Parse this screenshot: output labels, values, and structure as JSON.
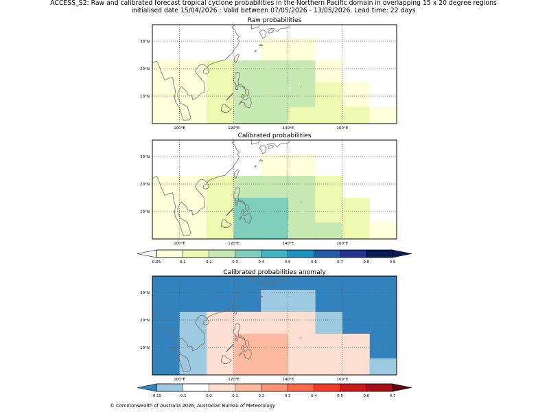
{
  "title_line1": "ACCESS_S2: Raw and calibrated forecast tropical cyclone probabilities in the Northern Pacific domain in overlapping 15 x 20 degree regions",
  "title_line2": "initialised date 15/04/2026 :  Valid between 07/05/2026 - 13/05/2026. Lead time: 22 days",
  "copyright": "© Commonwealth of Australia 2026, Australian Bureau of Meteorology",
  "colors": {
    "prob": [
      "#ffffd9",
      "#edf8b1",
      "#c7e9b4",
      "#7fcdbb",
      "#41b6c4",
      "#1d91c0",
      "#225ea8",
      "#253494",
      "#081d58"
    ],
    "prob_under": "#ffffff",
    "prob_over": "#081d58",
    "anom": [
      "#3182bd",
      "#9ecae1",
      "#ffffff",
      "#fee0d2",
      "#fcbba1",
      "#fc9272",
      "#fb6a4a",
      "#ef3b2c",
      "#cb181d",
      "#a50f15"
    ],
    "anom_under": "#3182bd",
    "anom_over": "#67000d",
    "coast": "#707070"
  },
  "chart_data": [
    {
      "type": "heatmap",
      "title": "Raw probabilities",
      "xticks": [
        "100°E",
        "120°E",
        "140°E",
        "160°E"
      ],
      "yticks": [
        "10°N",
        "20°N",
        "30°N"
      ],
      "xlim": [
        90,
        180
      ],
      "ylim": [
        0,
        36
      ],
      "cells": [
        {
          "lon": [
            90,
            110
          ],
          "lat": [
            0,
            23
          ],
          "value": 0.07
        },
        {
          "lon": [
            110,
            120
          ],
          "lat": [
            0,
            23
          ],
          "value": 0.13
        },
        {
          "lon": [
            120,
            130
          ],
          "lat": [
            15,
            23
          ],
          "value": 0.25
        },
        {
          "lon": [
            130,
            150
          ],
          "lat": [
            23,
            31
          ],
          "value": 0.07
        },
        {
          "lon": [
            130,
            140
          ],
          "lat": [
            15,
            23
          ],
          "value": 0.25
        },
        {
          "lon": [
            130,
            140
          ],
          "lat": [
            0,
            15
          ],
          "value": 0.25
        },
        {
          "lon": [
            120,
            130
          ],
          "lat": [
            0,
            15
          ],
          "value": 0.25
        },
        {
          "lon": [
            140,
            150
          ],
          "lat": [
            15,
            23
          ],
          "value": 0.25
        },
        {
          "lon": [
            140,
            150
          ],
          "lat": [
            6,
            15
          ],
          "value": 0.25
        },
        {
          "lon": [
            140,
            150
          ],
          "lat": [
            0,
            6
          ],
          "value": 0.13
        },
        {
          "lon": [
            150,
            160
          ],
          "lat": [
            15,
            23
          ],
          "value": 0.07
        },
        {
          "lon": [
            150,
            160
          ],
          "lat": [
            0,
            15
          ],
          "value": 0.13
        },
        {
          "lon": [
            160,
            170
          ],
          "lat": [
            6,
            15
          ],
          "value": 0.07
        },
        {
          "lon": [
            160,
            170
          ],
          "lat": [
            0,
            6
          ],
          "value": 0.13
        },
        {
          "lon": [
            170,
            180
          ],
          "lat": [
            0,
            6
          ],
          "value": 0.07
        }
      ]
    },
    {
      "type": "heatmap",
      "title": "Calibrated probabilities",
      "xticks": [
        "100°E",
        "120°E",
        "140°E",
        "160°E"
      ],
      "yticks": [
        "10°N",
        "20°N",
        "30°N"
      ],
      "xlim": [
        90,
        180
      ],
      "ylim": [
        0,
        36
      ],
      "cells": [
        {
          "lon": [
            90,
            110
          ],
          "lat": [
            0,
            23
          ],
          "value": 0.07
        },
        {
          "lon": [
            110,
            120
          ],
          "lat": [
            0,
            23
          ],
          "value": 0.13
        },
        {
          "lon": [
            110,
            120
          ],
          "lat": [
            15,
            21
          ],
          "value": 0.13
        },
        {
          "lon": [
            120,
            130
          ],
          "lat": [
            15,
            23
          ],
          "value": 0.25
        },
        {
          "lon": [
            130,
            150
          ],
          "lat": [
            23,
            31
          ],
          "value": 0.07
        },
        {
          "lon": [
            130,
            140
          ],
          "lat": [
            15,
            23
          ],
          "value": 0.25
        },
        {
          "lon": [
            120,
            130
          ],
          "lat": [
            0,
            15
          ],
          "value": 0.35
        },
        {
          "lon": [
            130,
            140
          ],
          "lat": [
            0,
            15
          ],
          "value": 0.35
        },
        {
          "lon": [
            140,
            150
          ],
          "lat": [
            15,
            23
          ],
          "value": 0.25
        },
        {
          "lon": [
            140,
            150
          ],
          "lat": [
            0,
            15
          ],
          "value": 0.25
        },
        {
          "lon": [
            150,
            160
          ],
          "lat": [
            15,
            23
          ],
          "value": 0.13
        },
        {
          "lon": [
            150,
            160
          ],
          "lat": [
            6,
            15
          ],
          "value": 0.13
        },
        {
          "lon": [
            150,
            160
          ],
          "lat": [
            0,
            6
          ],
          "value": 0.25
        },
        {
          "lon": [
            160,
            170
          ],
          "lat": [
            0,
            15
          ],
          "value": 0.13
        },
        {
          "lon": [
            170,
            180
          ],
          "lat": [
            0,
            6
          ],
          "value": 0.07
        }
      ]
    },
    {
      "type": "heatmap",
      "title": "Calibrated probabilities anomaly",
      "xticks": [
        "100°E",
        "120°E",
        "140°E",
        "160°E"
      ],
      "yticks": [
        "10°N",
        "20°N",
        "30°N"
      ],
      "xlim": [
        90,
        180
      ],
      "ylim": [
        0,
        36
      ],
      "cells": [
        {
          "lon": [
            90,
            180
          ],
          "lat": [
            0,
            36
          ],
          "value": -0.2
        },
        {
          "lon": [
            130,
            150
          ],
          "lat": [
            23,
            31
          ],
          "value": -0.12
        },
        {
          "lon": [
            100,
            110
          ],
          "lat": [
            0,
            23
          ],
          "value": -0.12
        },
        {
          "lon": [
            110,
            120
          ],
          "lat": [
            15,
            23
          ],
          "value": 0.0
        },
        {
          "lon": [
            110,
            120
          ],
          "lat": [
            0,
            15
          ],
          "value": 0.05
        },
        {
          "lon": [
            120,
            130
          ],
          "lat": [
            15,
            23
          ],
          "value": 0.05
        },
        {
          "lon": [
            120,
            130
          ],
          "lat": [
            0,
            15
          ],
          "value": 0.15
        },
        {
          "lon": [
            130,
            140
          ],
          "lat": [
            15,
            23
          ],
          "value": 0.05
        },
        {
          "lon": [
            130,
            140
          ],
          "lat": [
            0,
            15
          ],
          "value": 0.15
        },
        {
          "lon": [
            140,
            150
          ],
          "lat": [
            15,
            23
          ],
          "value": 0.0
        },
        {
          "lon": [
            140,
            150
          ],
          "lat": [
            0,
            15
          ],
          "value": 0.05
        },
        {
          "lon": [
            150,
            160
          ],
          "lat": [
            15,
            23
          ],
          "value": -0.12
        },
        {
          "lon": [
            150,
            160
          ],
          "lat": [
            6,
            15
          ],
          "value": 0.0
        },
        {
          "lon": [
            150,
            160
          ],
          "lat": [
            0,
            6
          ],
          "value": 0.05
        },
        {
          "lon": [
            160,
            170
          ],
          "lat": [
            0,
            15
          ],
          "value": 0.0
        },
        {
          "lon": [
            170,
            180
          ],
          "lat": [
            0,
            6
          ],
          "value": -0.12
        }
      ]
    }
  ],
  "colorbar_prob": {
    "levels": [
      0.05,
      0.1,
      0.2,
      0.3,
      0.4,
      0.5,
      0.6,
      0.7,
      0.8,
      0.9
    ],
    "labels": [
      "0.05",
      "0.1",
      "0.2",
      "0.3",
      "0.4",
      "0.5",
      "0.6",
      "0.7",
      "0.8",
      "0.9"
    ]
  },
  "colorbar_anom": {
    "levels": [
      -0.15,
      -0.1,
      0.0,
      0.1,
      0.2,
      0.3,
      0.4,
      0.5,
      0.6,
      0.7
    ],
    "labels": [
      "-0.15",
      "-0.1",
      "0.0",
      "0.1",
      "0.2",
      "0.3",
      "0.4",
      "0.5",
      "0.6",
      "0.7"
    ]
  }
}
